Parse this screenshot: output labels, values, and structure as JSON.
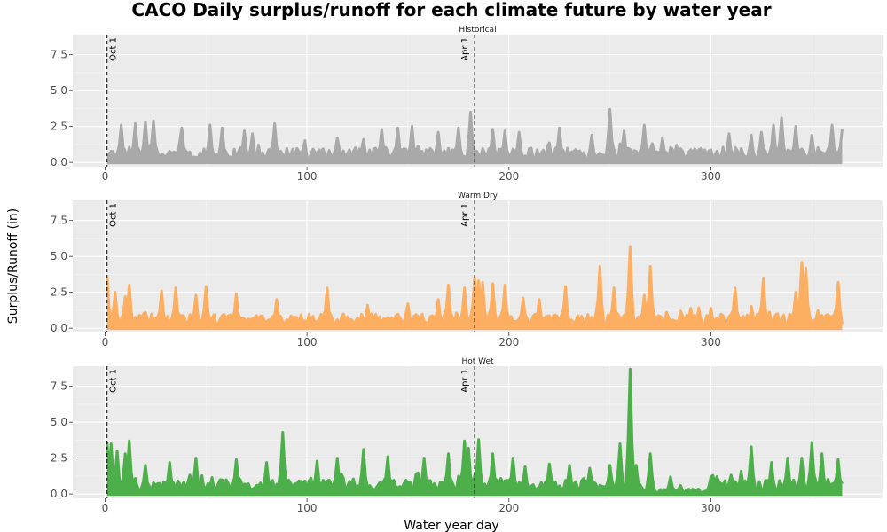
{
  "chart_data": {
    "type": "area",
    "title": "CACO Daily surplus/runoff for each climate future by water year",
    "xlabel": "Water year day",
    "ylabel": "Surplus/Runoff (in)",
    "xlim": [
      -16,
      385
    ],
    "ylim": [
      -0.3,
      8.9
    ],
    "x_ticks": [
      0,
      100,
      200,
      300
    ],
    "y_ticks": [
      0.0,
      2.5,
      5.0,
      7.5
    ],
    "y_tick_labels": [
      "0.0",
      "2.5",
      "5.0",
      "7.5"
    ],
    "grid": true,
    "x_domain": [
      1,
      365
    ],
    "vertical_lines": [
      {
        "label": "Oct 1",
        "x": 1
      },
      {
        "label": "Apr 1",
        "x": 183
      }
    ],
    "series": [
      {
        "name": "Historical",
        "color": "#A9A9A9",
        "peaks": [
          [
            8,
            2.6
          ],
          [
            15,
            2.7
          ],
          [
            20,
            2.8
          ],
          [
            24,
            2.9
          ],
          [
            38,
            2.4
          ],
          [
            52,
            2.6
          ],
          [
            58,
            2.4
          ],
          [
            69,
            2.2
          ],
          [
            73,
            2.0
          ],
          [
            84,
            2.7
          ],
          [
            115,
            1.7
          ],
          [
            128,
            1.6
          ],
          [
            137,
            2.3
          ],
          [
            145,
            2.4
          ],
          [
            152,
            2.5
          ],
          [
            165,
            2.1
          ],
          [
            175,
            2.4
          ],
          [
            181,
            3.5
          ],
          [
            192,
            2.3
          ],
          [
            198,
            2.2
          ],
          [
            205,
            2.1
          ],
          [
            225,
            2.4
          ],
          [
            241,
            1.9
          ],
          [
            250,
            3.7
          ],
          [
            257,
            2.2
          ],
          [
            267,
            2.6
          ],
          [
            276,
            1.7
          ],
          [
            283,
            1.2
          ],
          [
            309,
            2.0
          ],
          [
            320,
            1.9
          ],
          [
            325,
            2.1
          ],
          [
            331,
            2.6
          ],
          [
            335,
            3.1
          ],
          [
            342,
            2.5
          ],
          [
            350,
            1.9
          ],
          [
            360,
            2.6
          ],
          [
            365,
            2.3
          ]
        ]
      },
      {
        "name": "Warm Dry",
        "color": "#FDAE61",
        "peaks": [
          [
            1,
            3.6
          ],
          [
            5,
            2.5
          ],
          [
            10,
            2.2
          ],
          [
            12,
            3.0
          ],
          [
            28,
            2.6
          ],
          [
            35,
            2.8
          ],
          [
            45,
            2.3
          ],
          [
            50,
            2.9
          ],
          [
            65,
            2.4
          ],
          [
            85,
            2.0
          ],
          [
            110,
            2.8
          ],
          [
            130,
            1.6
          ],
          [
            150,
            1.7
          ],
          [
            165,
            2.0
          ],
          [
            170,
            3.0
          ],
          [
            178,
            2.8
          ],
          [
            183,
            3.5
          ],
          [
            185,
            3.3
          ],
          [
            187,
            3.2
          ],
          [
            192,
            3.1
          ],
          [
            198,
            3.0
          ],
          [
            207,
            2.1
          ],
          [
            215,
            2.0
          ],
          [
            228,
            2.9
          ],
          [
            245,
            4.3
          ],
          [
            252,
            2.8
          ],
          [
            260,
            5.7
          ],
          [
            267,
            2.3
          ],
          [
            270,
            4.3
          ],
          [
            285,
            1.2
          ],
          [
            290,
            1.4
          ],
          [
            300,
            1.4
          ],
          [
            312,
            2.8
          ],
          [
            326,
            3.5
          ],
          [
            342,
            2.5
          ],
          [
            345,
            4.6
          ],
          [
            347,
            4.2
          ],
          [
            363,
            3.2
          ]
        ]
      },
      {
        "name": "Hot Wet",
        "color": "#4DAF4A",
        "peaks": [
          [
            1,
            3.6
          ],
          [
            3,
            3.5
          ],
          [
            6,
            3.0
          ],
          [
            10,
            2.8
          ],
          [
            12,
            3.7
          ],
          [
            20,
            2.0
          ],
          [
            32,
            2.2
          ],
          [
            45,
            2.5
          ],
          [
            65,
            2.4
          ],
          [
            80,
            2.2
          ],
          [
            88,
            4.3
          ],
          [
            105,
            2.3
          ],
          [
            115,
            2.5
          ],
          [
            128,
            3.1
          ],
          [
            140,
            2.6
          ],
          [
            158,
            2.5
          ],
          [
            170,
            2.8
          ],
          [
            178,
            3.7
          ],
          [
            180,
            3.2
          ],
          [
            185,
            3.8
          ],
          [
            192,
            2.8
          ],
          [
            202,
            2.5
          ],
          [
            208,
            1.9
          ],
          [
            220,
            2.1
          ],
          [
            230,
            2.0
          ],
          [
            240,
            1.8
          ],
          [
            250,
            2.0
          ],
          [
            255,
            3.5
          ],
          [
            260,
            8.7
          ],
          [
            263,
            2.0
          ],
          [
            270,
            2.8
          ],
          [
            280,
            1.2
          ],
          [
            285,
            0.6
          ],
          [
            300,
            1.2
          ],
          [
            315,
            1.6
          ],
          [
            320,
            3.3
          ],
          [
            330,
            2.2
          ],
          [
            338,
            2.5
          ],
          [
            345,
            2.5
          ],
          [
            350,
            3.6
          ],
          [
            355,
            2.8
          ],
          [
            363,
            2.4
          ]
        ]
      }
    ]
  }
}
